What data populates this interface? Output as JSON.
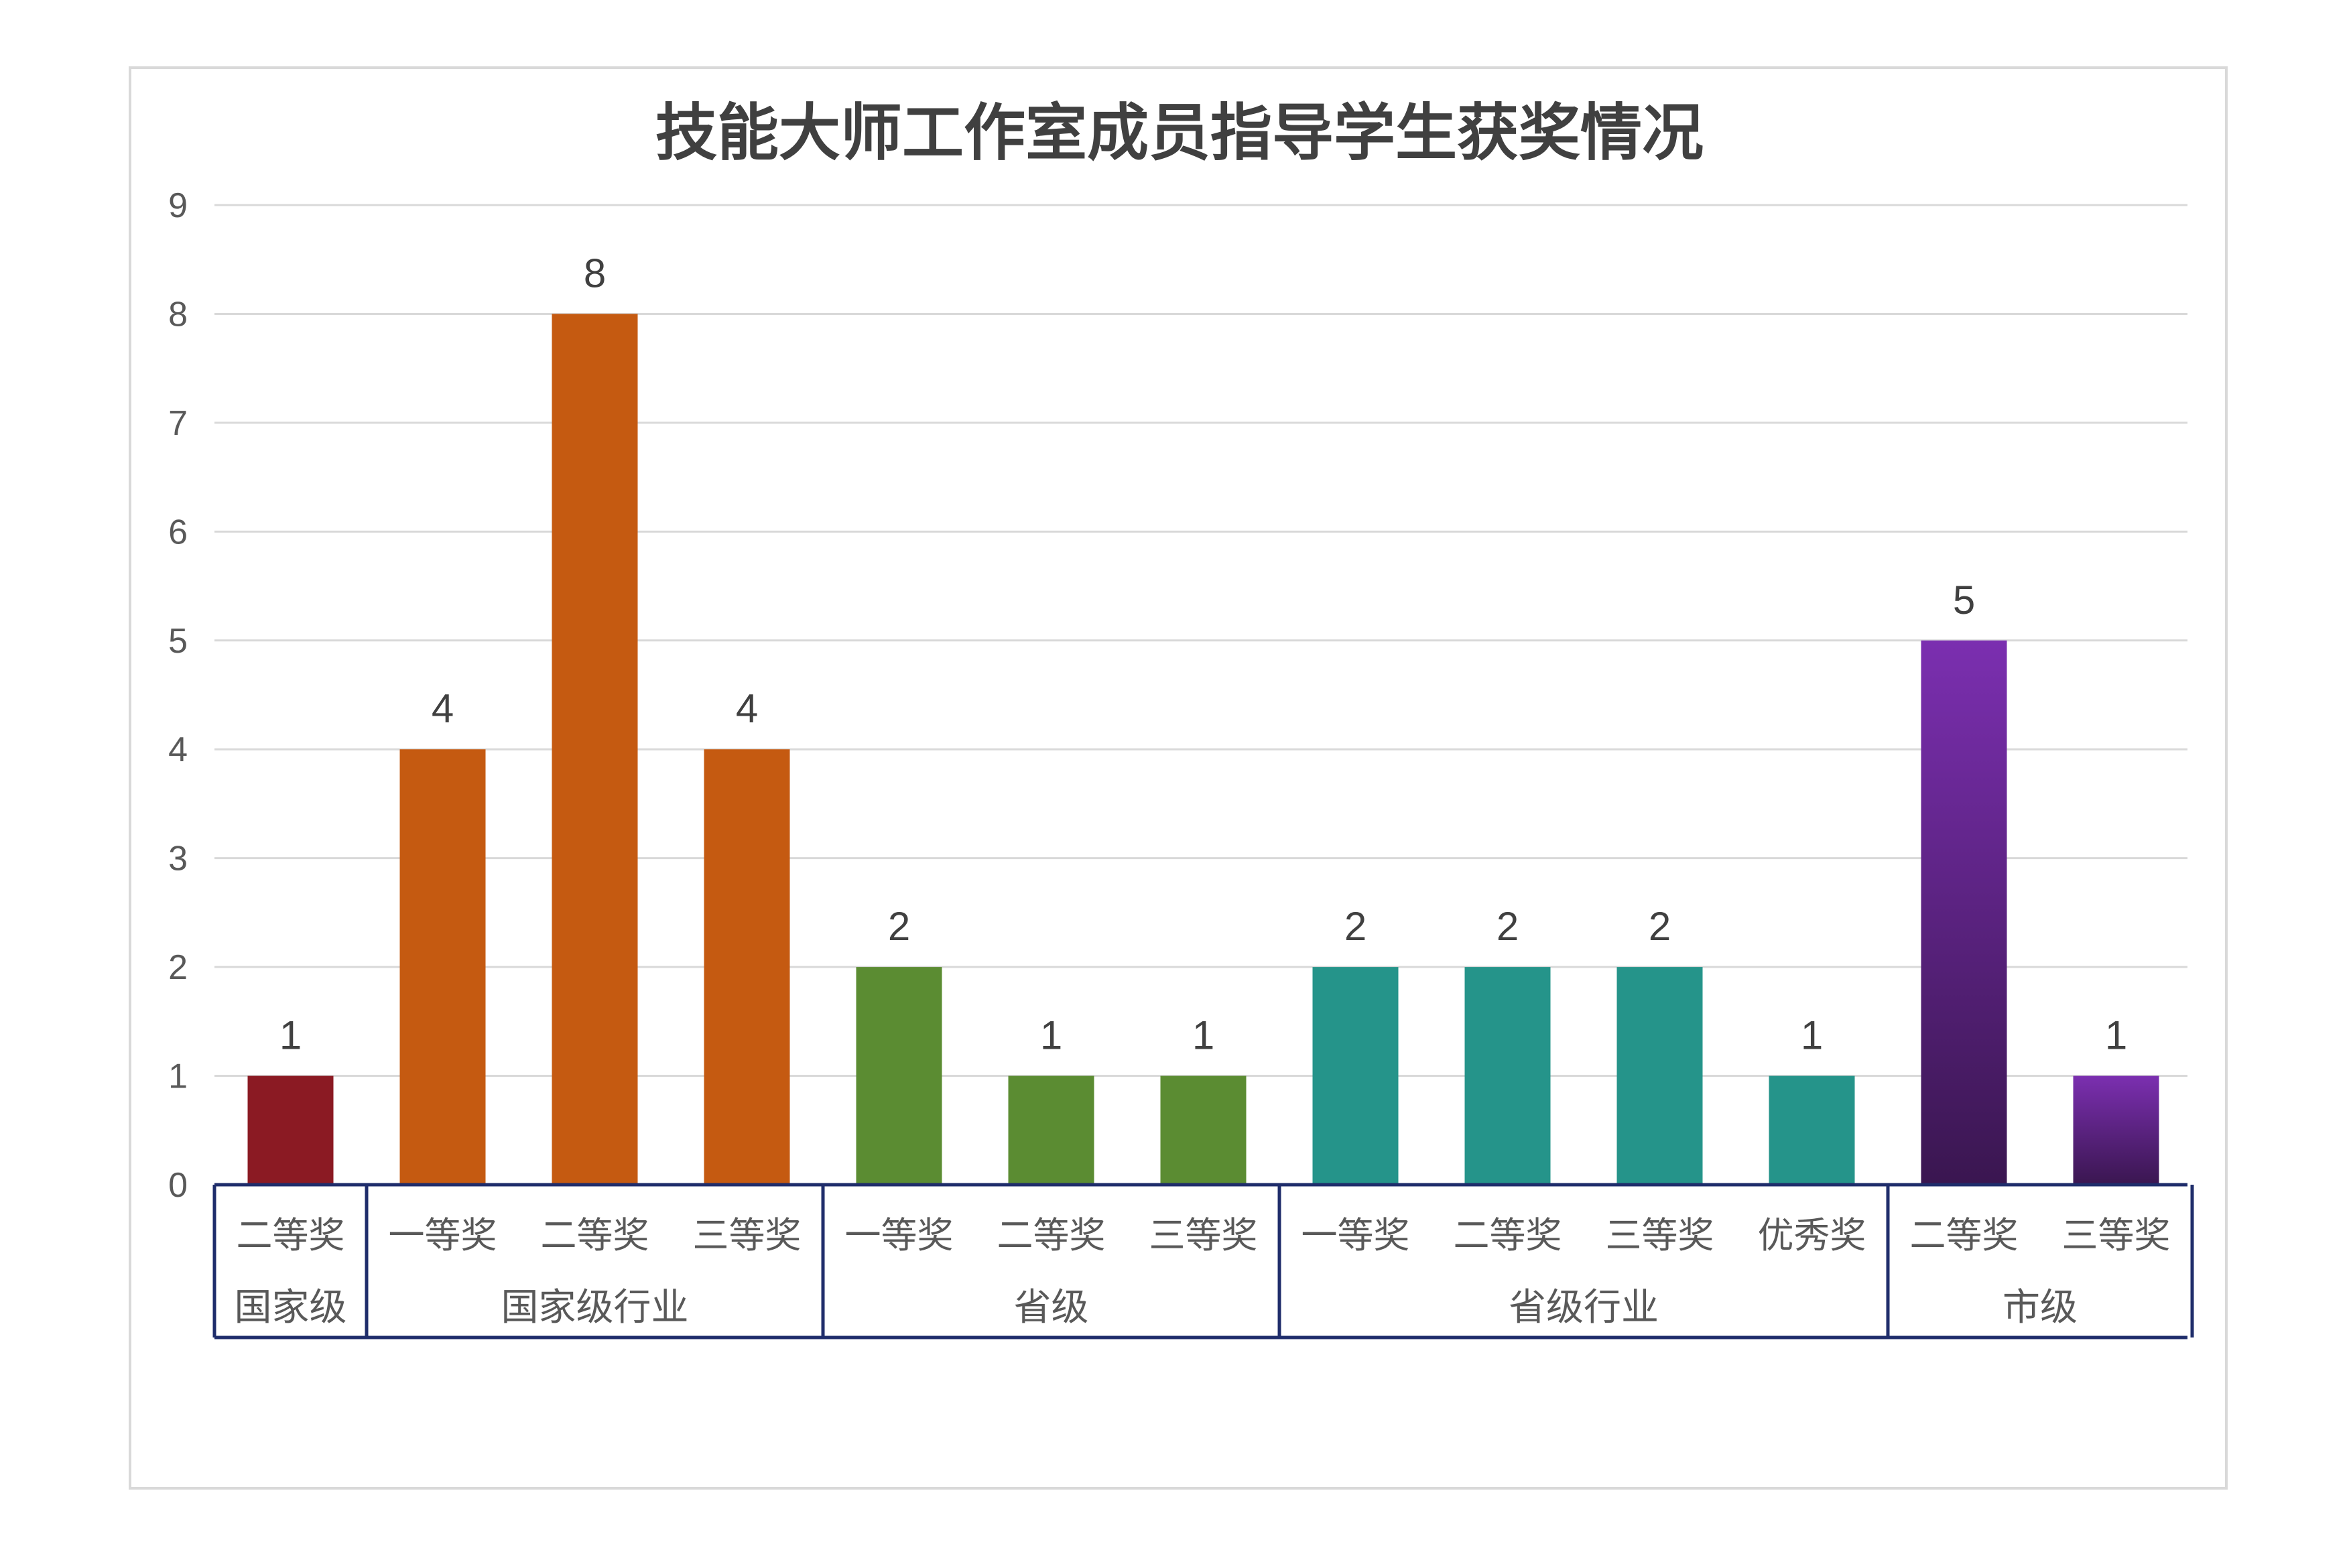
{
  "chart_data": {
    "type": "bar",
    "title": "技能大师工作室成员指导学生获奖情况",
    "xlabel": "",
    "ylabel": "",
    "ylim": [
      0,
      9
    ],
    "yticks": [
      0,
      1,
      2,
      3,
      4,
      5,
      6,
      7,
      8,
      9
    ],
    "grid": true,
    "legend": "none",
    "groups": [
      {
        "label": "国家级",
        "color": "#8B1A23",
        "bars": [
          {
            "category": "二等奖",
            "value": 1
          }
        ]
      },
      {
        "label": "国家级行业",
        "color": "#C55A11",
        "bars": [
          {
            "category": "一等奖",
            "value": 4
          },
          {
            "category": "二等奖",
            "value": 8
          },
          {
            "category": "三等奖",
            "value": 4
          }
        ]
      },
      {
        "label": "省级",
        "color": "#5B8C32",
        "bars": [
          {
            "category": "一等奖",
            "value": 2
          },
          {
            "category": "二等奖",
            "value": 1
          },
          {
            "category": "三等奖",
            "value": 1
          }
        ]
      },
      {
        "label": "省级行业",
        "color": "#25948A",
        "bars": [
          {
            "category": "一等奖",
            "value": 2
          },
          {
            "category": "二等奖",
            "value": 2
          },
          {
            "category": "三等奖",
            "value": 2
          },
          {
            "category": "优秀奖",
            "value": 1
          }
        ]
      },
      {
        "label": "市级",
        "color": "#7B2FB0",
        "color_dark": "#3A1650",
        "gradient": true,
        "bars": [
          {
            "category": "二等奖",
            "value": 5
          },
          {
            "category": "三等奖",
            "value": 1
          }
        ]
      }
    ]
  },
  "colors": {
    "gridline": "#d9d9d9",
    "axis_table": "#1F2D6B",
    "frame_border": "#d9d9d9"
  }
}
